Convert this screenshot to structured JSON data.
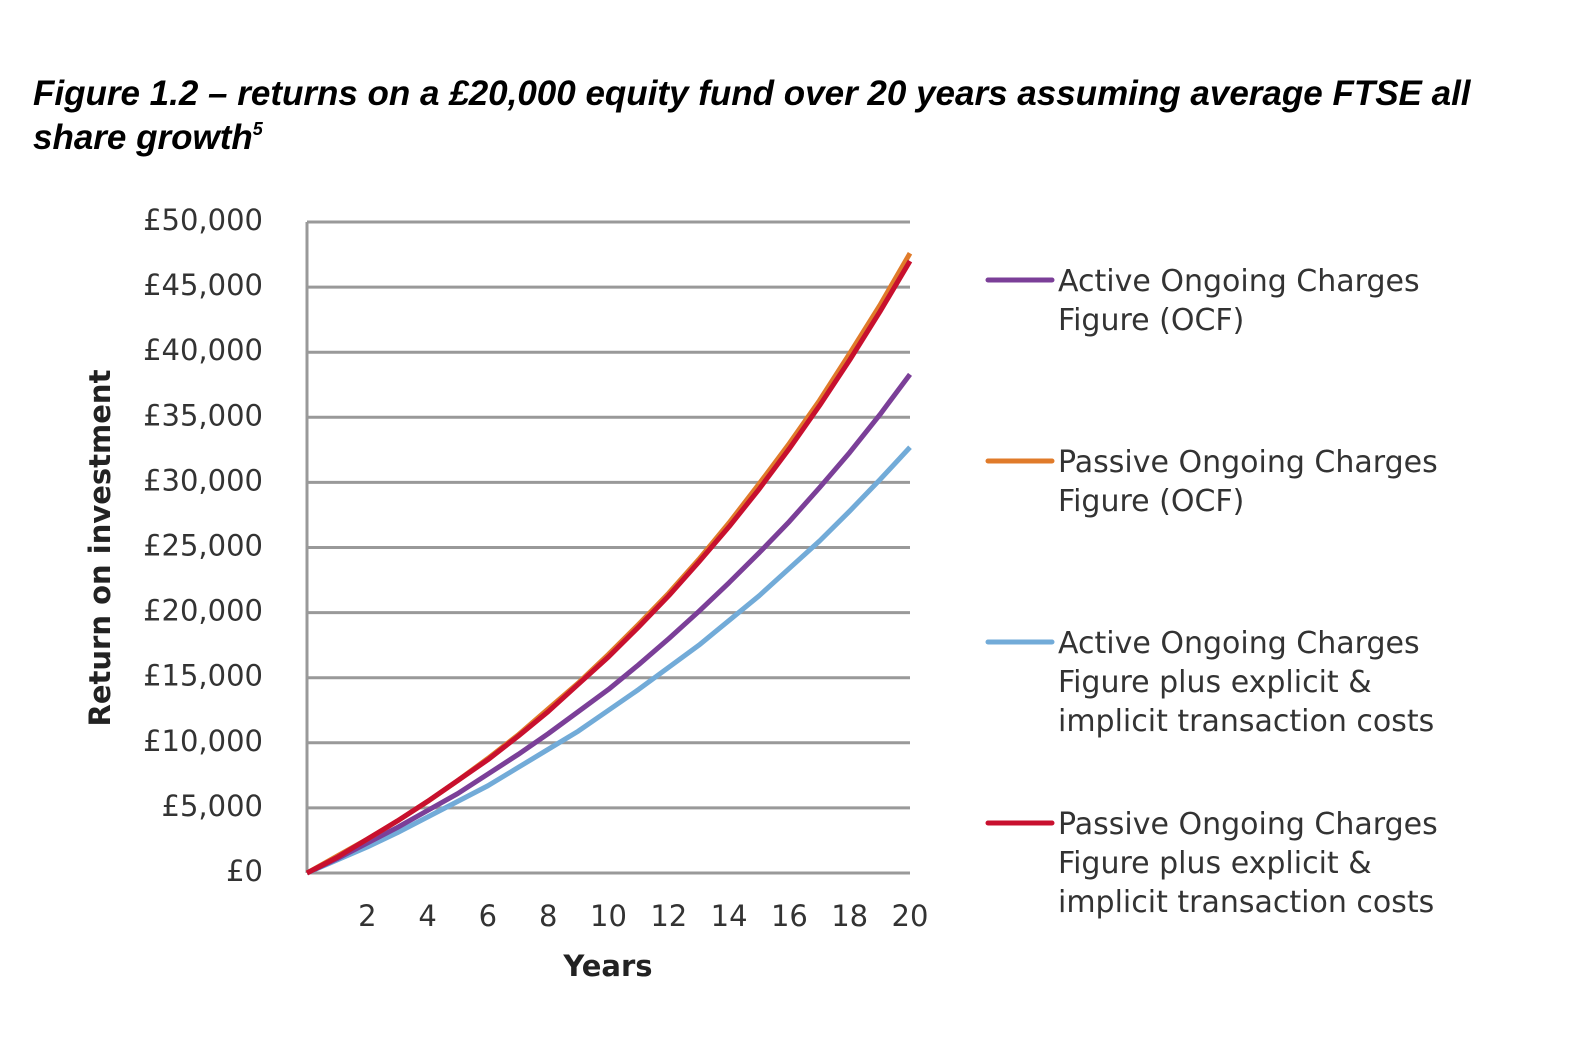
{
  "chart_data": {
    "type": "line",
    "title": "Figure 1.2 – returns on a £20,000 equity fund over 20 years assuming average FTSE all share growth",
    "footnote_marker": "5",
    "y_label": "Return on investment",
    "x_label": "Years",
    "x": [
      0,
      1,
      2,
      3,
      4,
      5,
      6,
      7,
      8,
      9,
      10,
      11,
      12,
      13,
      14,
      15,
      16,
      17,
      18,
      19,
      20
    ],
    "xlim": [
      0,
      20
    ],
    "xticks": [
      2,
      4,
      6,
      8,
      10,
      12,
      14,
      16,
      18,
      20
    ],
    "ylim": [
      0,
      50000
    ],
    "yticks": [
      {
        "value": 0,
        "label": "£0"
      },
      {
        "value": 5000,
        "label": "£5,000"
      },
      {
        "value": 10000,
        "label": "£10,000"
      },
      {
        "value": 15000,
        "label": "£15,000"
      },
      {
        "value": 20000,
        "label": "£20,000"
      },
      {
        "value": 25000,
        "label": "£25,000"
      },
      {
        "value": 30000,
        "label": "£30,000"
      },
      {
        "value": 35000,
        "label": "£35,000"
      },
      {
        "value": 40000,
        "label": "£40,000"
      },
      {
        "value": 45000,
        "label": "£45,000"
      },
      {
        "value": 50000,
        "label": "£50,000"
      }
    ],
    "grid": true,
    "legend": "right",
    "series": [
      {
        "name": "Active Ongoing Charges Figure (OCF)",
        "color": "#7b3f98",
        "values": [
          0,
          1100,
          2300,
          3500,
          4800,
          6100,
          7600,
          9100,
          10700,
          12400,
          14100,
          16000,
          18000,
          20100,
          22300,
          24600,
          27000,
          29600,
          32300,
          35200,
          38300
        ]
      },
      {
        "name": "Passive Ongoing Charges Figure (OCF)",
        "color": "#e07b2a",
        "values": [
          0,
          1300,
          2600,
          4000,
          5500,
          7100,
          8800,
          10600,
          12600,
          14600,
          16800,
          19100,
          21500,
          24100,
          26900,
          29900,
          33000,
          36300,
          39900,
          43600,
          47600
        ]
      },
      {
        "name": "Active Ongoing Charges Figure plus explicit & implicit transaction costs",
        "color": "#72abd8",
        "values": [
          0,
          1000,
          2000,
          3100,
          4300,
          5500,
          6700,
          8100,
          9500,
          10900,
          12500,
          14100,
          15800,
          17500,
          19400,
          21300,
          23400,
          25500,
          27800,
          30200,
          32700
        ]
      },
      {
        "name": "Passive Ongoing Charges Figure plus explicit & implicit transaction costs",
        "color": "#c8102e",
        "values": [
          0,
          1200,
          2600,
          4000,
          5500,
          7100,
          8700,
          10500,
          12400,
          14500,
          16600,
          18900,
          21300,
          23900,
          26600,
          29500,
          32600,
          35900,
          39400,
          43100,
          47000
        ]
      }
    ]
  }
}
